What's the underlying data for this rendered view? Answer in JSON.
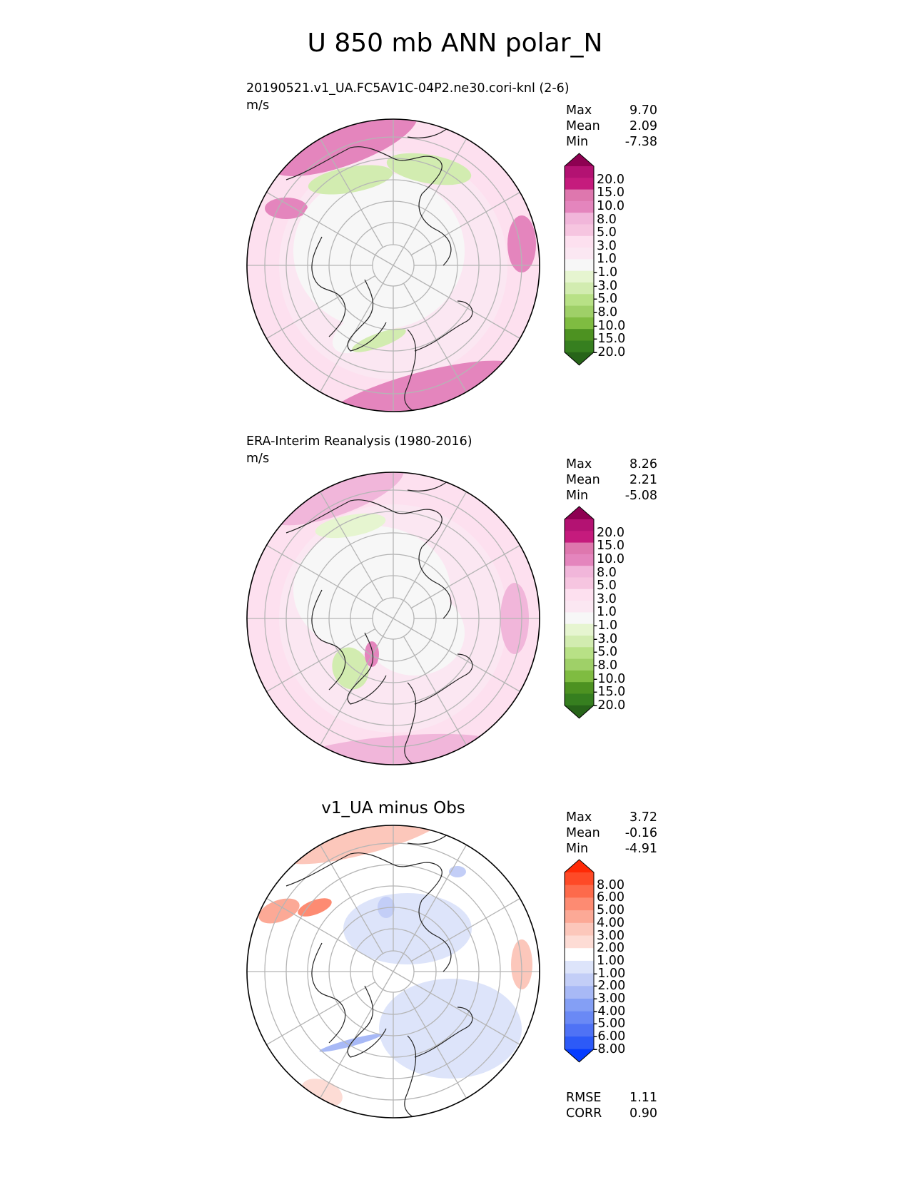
{
  "title": "U 850 mb ANN polar_N",
  "colors": {
    "main": [
      "#276419",
      "#367f1f",
      "#4d9221",
      "#7fbc41",
      "#9fd068",
      "#b8e186",
      "#d2ecb0",
      "#e6f5d0",
      "#f7f7f7",
      "#fbe7f2",
      "#fde0ef",
      "#f6c5e0",
      "#f1b6da",
      "#e485bd",
      "#de77ae",
      "#c51b7d",
      "#b31272",
      "#8e0152"
    ],
    "diff": [
      "#053cff",
      "#2d5af7",
      "#4f72f5",
      "#6a89f5",
      "#849ff5",
      "#a8b9f6",
      "#c3cef7",
      "#dde4fa",
      "#ffffff",
      "#fddcd5",
      "#fcc7bb",
      "#fca996",
      "#fd8b72",
      "#fd6a4b",
      "#fe4a27",
      "#ff2a06"
    ]
  },
  "panels": [
    {
      "title": "",
      "subtitle": "20190521.v1_UA.FC5AV1C-04P2.ne30.cori-knl (2-6)",
      "units": "m/s",
      "stats": [
        {
          "label": "Max",
          "value": "9.70"
        },
        {
          "label": "Mean",
          "value": "2.09"
        },
        {
          "label": "Min",
          "value": "-7.38"
        }
      ],
      "colorbar": {
        "levels": [
          "20.0",
          "15.0",
          "10.0",
          "8.0",
          "5.0",
          "3.0",
          "1.0",
          "-1.0",
          "-3.0",
          "-5.0",
          "-8.0",
          "-10.0",
          "-15.0",
          "-20.0"
        ],
        "palette": "main"
      }
    },
    {
      "title": "",
      "subtitle": "ERA-Interim Reanalysis (1980-2016)",
      "units": "m/s",
      "stats": [
        {
          "label": "Max",
          "value": "8.26"
        },
        {
          "label": "Mean",
          "value": "2.21"
        },
        {
          "label": "Min",
          "value": "-5.08"
        }
      ],
      "colorbar": {
        "levels": [
          "20.0",
          "15.0",
          "10.0",
          "8.0",
          "5.0",
          "3.0",
          "1.0",
          "-1.0",
          "-3.0",
          "-5.0",
          "-8.0",
          "-10.0",
          "-15.0",
          "-20.0"
        ],
        "palette": "main"
      }
    },
    {
      "title": "v1_UA minus Obs",
      "subtitle": "",
      "units": "",
      "stats": [
        {
          "label": "Max",
          "value": "3.72"
        },
        {
          "label": "Mean",
          "value": "-0.16"
        },
        {
          "label": "Min",
          "value": "-4.91"
        }
      ],
      "colorbar": {
        "levels": [
          "8.00",
          "6.00",
          "5.00",
          "4.00",
          "3.00",
          "2.00",
          "1.00",
          "-1.00",
          "-2.00",
          "-3.00",
          "-4.00",
          "-5.00",
          "-6.00",
          "-8.00"
        ],
        "palette": "diff"
      },
      "metrics": [
        {
          "label": "RMSE",
          "value": "1.11"
        },
        {
          "label": "CORR",
          "value": "0.90"
        }
      ]
    }
  ]
}
